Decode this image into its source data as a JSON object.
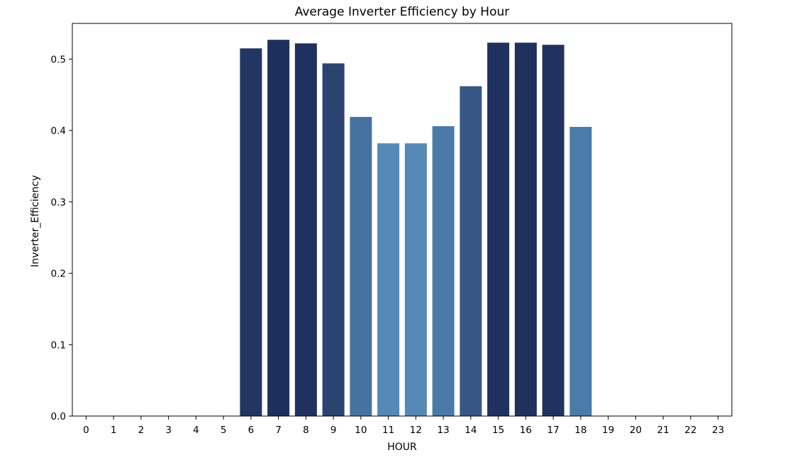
{
  "chart_data": {
    "type": "bar",
    "title": "Average Inverter Efficiency by Hour",
    "xlabel": "HOUR",
    "ylabel": "Inverter_Efficiency",
    "categories": [
      "0",
      "1",
      "2",
      "3",
      "4",
      "5",
      "6",
      "7",
      "8",
      "9",
      "10",
      "11",
      "12",
      "13",
      "14",
      "15",
      "16",
      "17",
      "18",
      "19",
      "20",
      "21",
      "22",
      "23"
    ],
    "values": [
      0,
      0,
      0,
      0,
      0,
      0,
      0.515,
      0.527,
      0.522,
      0.494,
      0.419,
      0.382,
      0.382,
      0.406,
      0.462,
      0.523,
      0.523,
      0.52,
      0.405,
      0,
      0,
      0,
      0,
      0
    ],
    "ylim": [
      0,
      0.55
    ],
    "yticks": [
      0.0,
      0.1,
      0.2,
      0.3,
      0.4,
      0.5
    ],
    "ytick_labels": [
      "0.0",
      "0.1",
      "0.2",
      "0.3",
      "0.4",
      "0.5"
    ],
    "grid": false,
    "palette": "Blues_d",
    "color_light": "#5489b8",
    "color_dark": "#1d2f5c"
  }
}
